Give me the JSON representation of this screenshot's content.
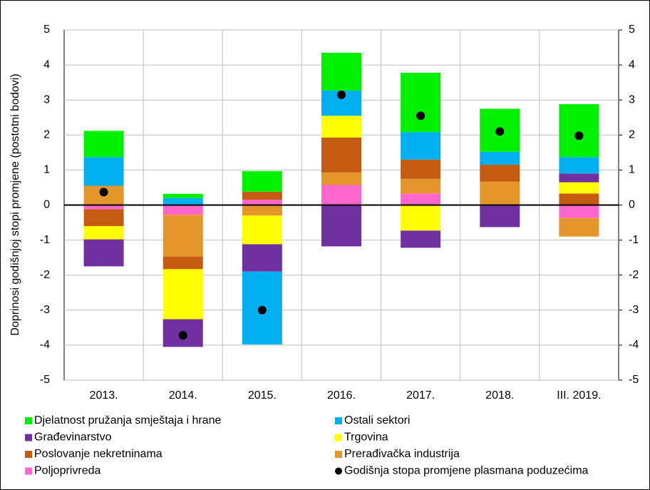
{
  "chart_data": {
    "type": "bar",
    "stacked": true,
    "y_label": "Doprinosi godišnjoj stopi promjene (postotni bodovi)",
    "categories": [
      "2013.",
      "2014.",
      "2015.",
      "2016.",
      "2017.",
      "2018.",
      "III. 2019."
    ],
    "series": [
      {
        "name": "Djelatnost pružanja smještaja i hrane",
        "color": "#00f000",
        "values": [
          0.75,
          0.12,
          0.59,
          1.08,
          1.7,
          1.23,
          1.51
        ]
      },
      {
        "name": "Ostali sektori",
        "color": "#00b0f0",
        "values": [
          0.82,
          0.2,
          -2.08,
          0.72,
          0.78,
          0.37,
          0.47
        ]
      },
      {
        "name": "Građevinarstvo",
        "color": "#7030a0",
        "values": [
          -0.77,
          -0.79,
          -0.78,
          -1.18,
          -0.49,
          -0.63,
          0.25
        ]
      },
      {
        "name": "Trgovina",
        "color": "#ffff00",
        "values": [
          -0.38,
          -1.43,
          -0.82,
          0.62,
          -0.73,
          0,
          0.32
        ]
      },
      {
        "name": "Poslovanje nekretninama",
        "color": "#c55a11",
        "values": [
          -0.48,
          -0.36,
          0.23,
          1.0,
          0.55,
          0.48,
          0.33
        ]
      },
      {
        "name": "Prerađivačka industrija",
        "color": "#e4962a",
        "values": [
          0.55,
          -1.19,
          -0.3,
          0.36,
          0.42,
          0.67,
          -0.53
        ]
      },
      {
        "name": "Poljoprivreda",
        "color": "#ff66cc",
        "values": [
          -0.12,
          -0.28,
          0.15,
          0.57,
          0.33,
          0,
          -0.37
        ]
      },
      {
        "name": "Godišnja stopa promjene plasmana poduzećima",
        "color": "#000000",
        "marker": "dot",
        "values": [
          0.37,
          -3.72,
          -3.0,
          3.15,
          2.55,
          2.1,
          1.98
        ]
      }
    ],
    "ylim": [
      -5,
      5
    ],
    "yticks": [
      -5,
      -4,
      -3,
      -2,
      -1,
      0,
      1,
      2,
      3,
      4,
      5
    ],
    "y2lim": [
      -5,
      5
    ],
    "y2ticks": [
      -5,
      -4,
      -3,
      -2,
      -1,
      0,
      1,
      2,
      3,
      4,
      5
    ],
    "grid": true
  }
}
